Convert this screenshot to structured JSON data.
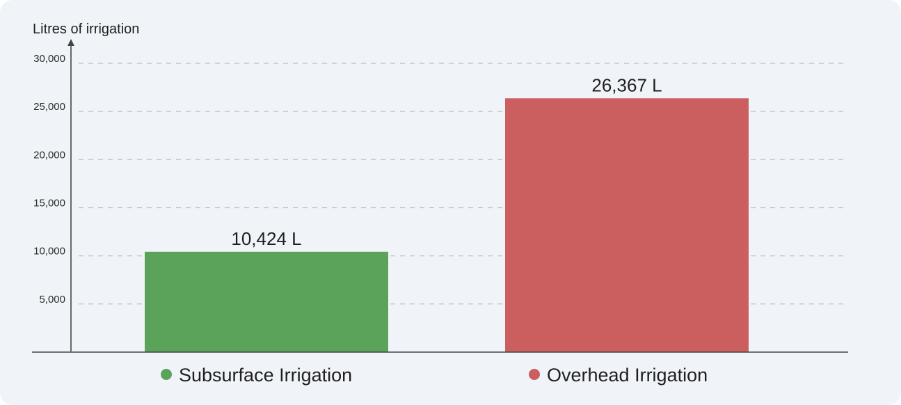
{
  "chart_data": {
    "type": "bar",
    "ylabel": "Litres of irrigation",
    "ylim": [
      0,
      30000
    ],
    "yticks": [
      5000,
      10000,
      15000,
      20000,
      25000,
      30000
    ],
    "ytick_labels": [
      "5,000",
      "10,000",
      "15,000",
      "20,000",
      "25,000",
      "30,000"
    ],
    "grid": "horizontal-dashed",
    "legend_position": "bottom",
    "categories": [
      "Subsurface Irrigation",
      "Overhead Irrigation"
    ],
    "values": [
      10424,
      26367
    ],
    "data_labels": [
      "10,424 L",
      "26,367 L"
    ],
    "colors": [
      "#5ba35b",
      "#cb5f5f"
    ]
  }
}
